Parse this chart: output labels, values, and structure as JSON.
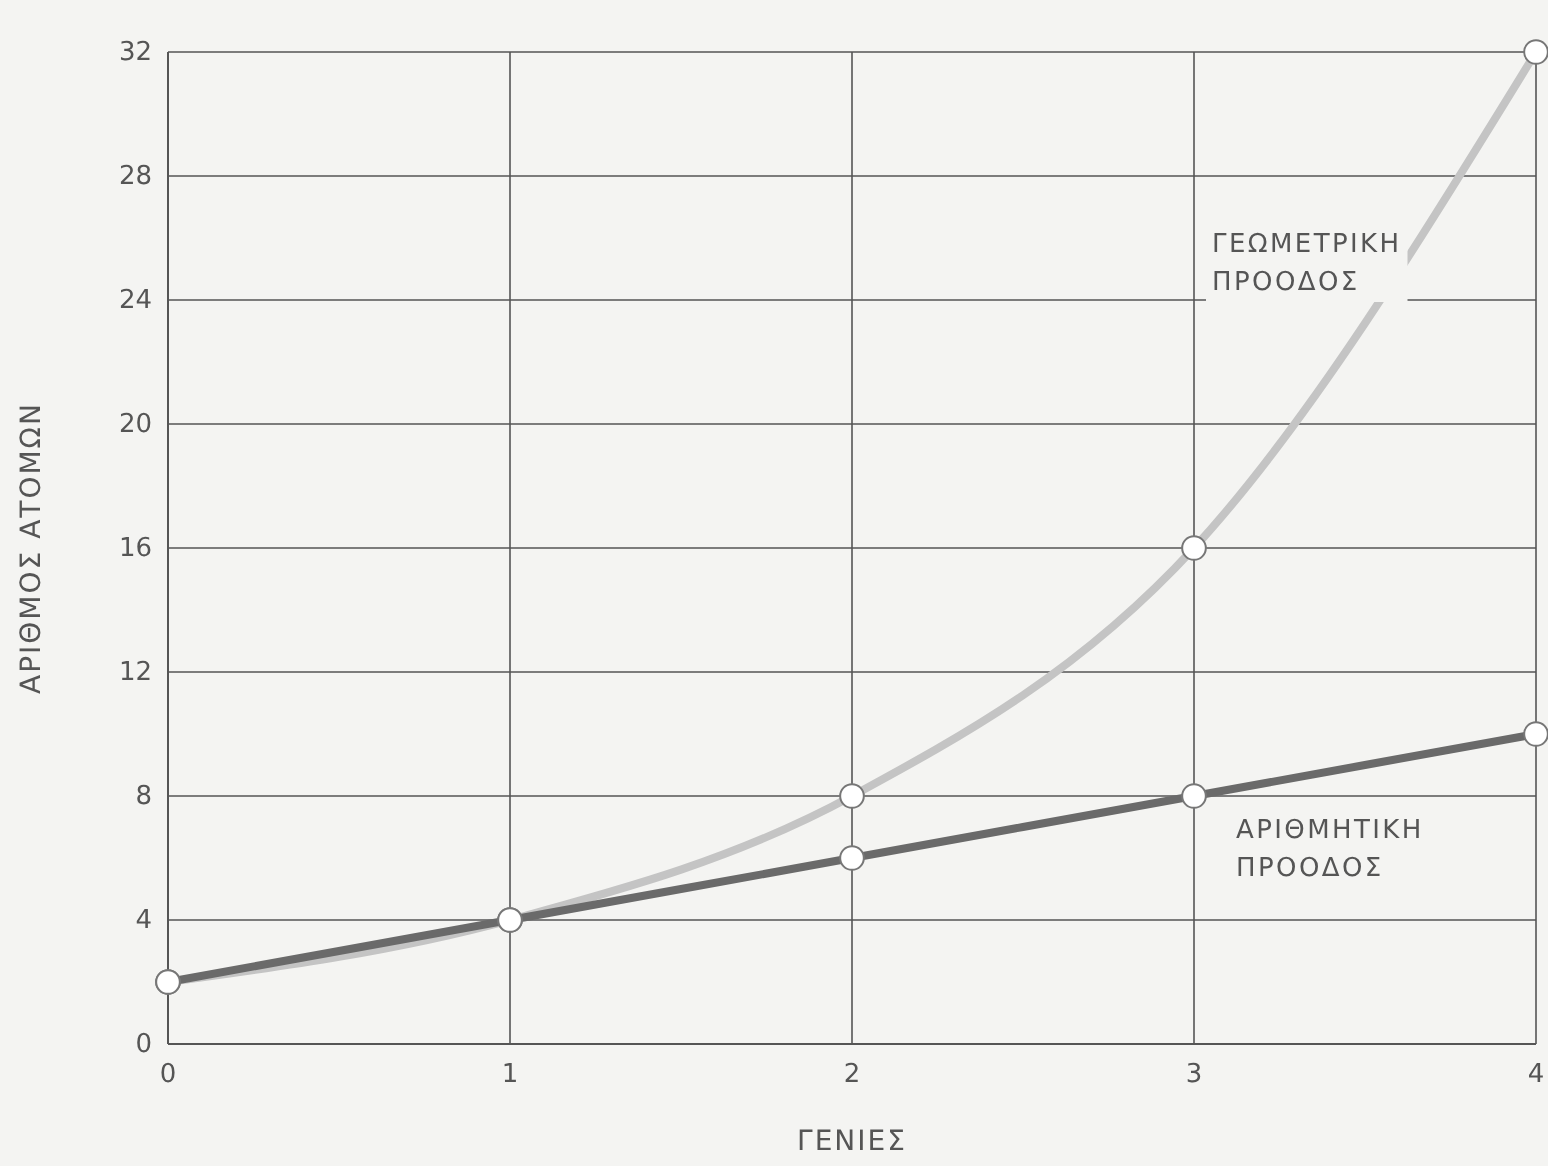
{
  "chart_data": {
    "type": "line",
    "xlabel": "ΓΕΝΙΕΣ",
    "ylabel": "ΑΡΙΘΜΟΣ ΑΤΟΜΩΝ",
    "x": [
      0,
      1,
      2,
      3,
      4
    ],
    "series": [
      {
        "name": "ΓΕΩΜΕΤΡΙΚΗ ΠΡΟΟΔΟΣ",
        "color": "#c4c4c4",
        "values": [
          2,
          4,
          8,
          16,
          32
        ]
      },
      {
        "name": "ΑΡΙΘΜΗΤΙΚΗ ΠΡΟΟΔΟΣ",
        "color": "#6a6a6a",
        "values": [
          2,
          4,
          6,
          8,
          10
        ]
      }
    ],
    "xlim": [
      0,
      4
    ],
    "ylim": [
      0,
      32
    ],
    "xticks": [
      0,
      1,
      2,
      3,
      4
    ],
    "yticks": [
      0,
      4,
      8,
      12,
      16,
      20,
      24,
      28,
      32
    ],
    "grid": true,
    "marker": "circle",
    "line_style": "solid"
  }
}
